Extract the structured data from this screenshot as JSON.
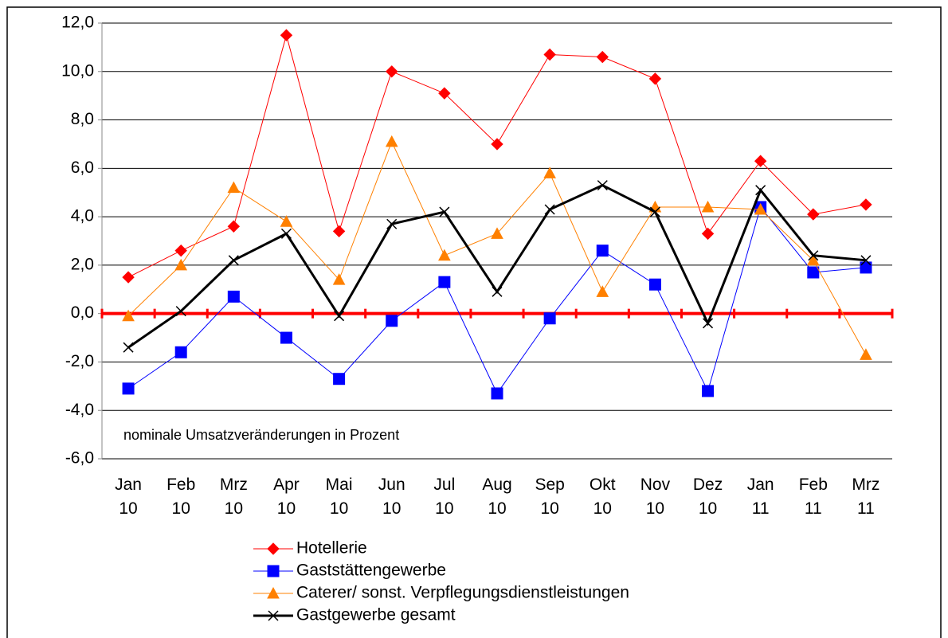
{
  "chart_data": {
    "type": "line",
    "annotation": "nominale Umsatzveränderungen in Prozent",
    "categories": [
      "Jan 10",
      "Feb 10",
      "Mrz 10",
      "Apr 10",
      "Mai 10",
      "Jun 10",
      "Jul 10",
      "Aug 10",
      "Sep 10",
      "Okt 10",
      "Nov 10",
      "Dez 10",
      "Jan 11",
      "Feb 11",
      "Mrz 11"
    ],
    "series": [
      {
        "name": "Hotellerie",
        "color": "#ff0000",
        "marker": "diamond",
        "width": 1,
        "values": [
          1.5,
          2.6,
          3.6,
          11.5,
          3.4,
          10.0,
          9.1,
          7.0,
          10.7,
          10.6,
          9.7,
          3.3,
          6.3,
          4.1,
          4.5
        ]
      },
      {
        "name": "Gaststättengewerbe",
        "color": "#0000ff",
        "marker": "square",
        "width": 1,
        "values": [
          -3.1,
          -1.6,
          0.7,
          -1.0,
          -2.7,
          -0.3,
          1.3,
          -3.3,
          -0.2,
          2.6,
          1.2,
          -3.2,
          4.4,
          1.7,
          1.9
        ]
      },
      {
        "name": "Caterer/ sonst. Verpflegungsdienstleistungen",
        "color": "#ff8000",
        "marker": "triangle",
        "width": 1,
        "values": [
          -0.1,
          2.0,
          5.2,
          3.8,
          1.4,
          7.1,
          2.4,
          3.3,
          5.8,
          0.9,
          4.4,
          4.4,
          4.3,
          2.2,
          -1.7
        ]
      },
      {
        "name": "Gastgewerbe gesamt",
        "color": "#000000",
        "marker": "x",
        "width": 3,
        "values": [
          -1.4,
          0.1,
          2.2,
          3.3,
          -0.1,
          3.7,
          4.2,
          0.9,
          4.3,
          5.3,
          4.2,
          -0.4,
          5.1,
          2.4,
          2.2
        ]
      }
    ],
    "ylim": [
      -6,
      12
    ],
    "yticks": [
      {
        "value": -6,
        "label": "-6,0"
      },
      {
        "value": -4,
        "label": "-4,0"
      },
      {
        "value": -2,
        "label": "-2,0"
      },
      {
        "value": 0,
        "label": "0,0"
      },
      {
        "value": 2,
        "label": "2,0"
      },
      {
        "value": 4,
        "label": "4,0"
      },
      {
        "value": 6,
        "label": "6,0"
      },
      {
        "value": 8,
        "label": "8,0"
      },
      {
        "value": 10,
        "label": "10,0"
      },
      {
        "value": 12,
        "label": "12,0"
      }
    ],
    "grid": true,
    "zero_line_color": "#ff0000"
  }
}
